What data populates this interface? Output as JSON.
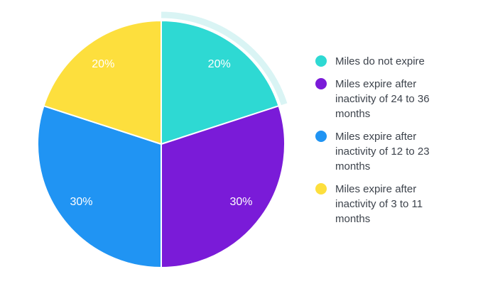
{
  "chart_data": {
    "type": "pie",
    "unit": "%",
    "start_angle_deg": -90,
    "direction": "clockwise",
    "legend_position": "right",
    "slice_label_color": "#ffffff",
    "highlight_ring_color": "#d9f4f4",
    "slices": [
      {
        "label": "Miles do not expire",
        "value": 20,
        "display": "20%",
        "color": "#2ed9d3",
        "highlighted": true
      },
      {
        "label": "Miles expire after inactivity of 24 to 36 months",
        "value": 30,
        "display": "30%",
        "color": "#7a1bd8",
        "highlighted": false
      },
      {
        "label": "Miles expire after inactivity of 12 to 23 months",
        "value": 30,
        "display": "30%",
        "color": "#2094f3",
        "highlighted": false
      },
      {
        "label": "Miles expire after inactivity of 3 to 11 months",
        "value": 20,
        "display": "20%",
        "color": "#fddf3d",
        "highlighted": false
      }
    ]
  }
}
